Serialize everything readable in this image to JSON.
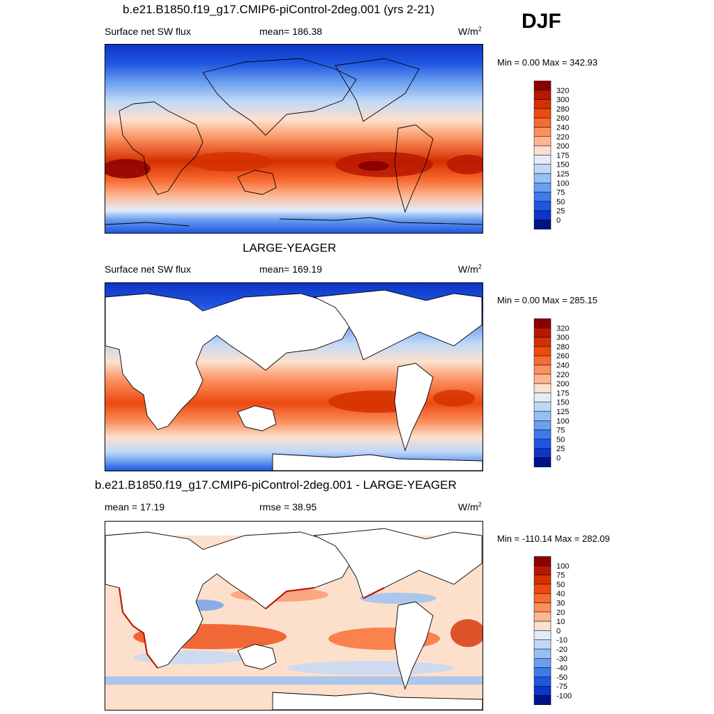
{
  "season": "DJF",
  "panels": [
    {
      "title": "b.e21.B1850.f19_g17.CMIP6-piControl-2deg.001 (yrs 2-21)",
      "left_label": "Surface net SW flux",
      "center_label": "mean= 186.38",
      "units": "W/m",
      "units_exp": "2",
      "minmax": "Min =   0.00 Max = 342.93",
      "colorbar": {
        "labels": [
          "320",
          "300",
          "280",
          "260",
          "240",
          "220",
          "200",
          "175",
          "150",
          "125",
          "100",
          "75",
          "50",
          "25",
          "0"
        ],
        "colors": [
          "#8b0000",
          "#b81800",
          "#d43000",
          "#ec4a10",
          "#f86a30",
          "#fb8f5e",
          "#fdb690",
          "#fde0cc",
          "#e2edfb",
          "#c0d8f8",
          "#98bff4",
          "#6b9ff0",
          "#3d7bec",
          "#1f56e0",
          "#0f35c8",
          "#00138a"
        ]
      }
    },
    {
      "title": "LARGE-YEAGER",
      "left_label": "Surface net SW flux",
      "center_label": "mean= 169.19",
      "units": "W/m",
      "units_exp": "2",
      "minmax": "Min =   0.00 Max = 285.15",
      "colorbar": {
        "labels": [
          "320",
          "300",
          "280",
          "260",
          "240",
          "220",
          "200",
          "175",
          "150",
          "125",
          "100",
          "75",
          "50",
          "25",
          "0"
        ],
        "colors": [
          "#8b0000",
          "#b81800",
          "#d43000",
          "#ec4a10",
          "#f86a30",
          "#fb8f5e",
          "#fdb690",
          "#fde0cc",
          "#e2edfb",
          "#c0d8f8",
          "#98bff4",
          "#6b9ff0",
          "#3d7bec",
          "#1f56e0",
          "#0f35c8",
          "#00138a"
        ]
      }
    },
    {
      "title": "b.e21.B1850.f19_g17.CMIP6-piControl-2deg.001 - LARGE-YEAGER",
      "left_label": "mean =  17.19",
      "center_label": "rmse =  38.95",
      "units": "W/m",
      "units_exp": "2",
      "minmax": "Min = -110.14 Max = 282.09",
      "colorbar": {
        "labels": [
          "100",
          "75",
          "50",
          "40",
          "30",
          "20",
          "10",
          "0",
          "-10",
          "-20",
          "-30",
          "-40",
          "-50",
          "-75",
          "-100"
        ],
        "colors": [
          "#8b0000",
          "#b81800",
          "#d43000",
          "#ec4a10",
          "#f86a30",
          "#fb8f5e",
          "#fdb690",
          "#fde0cc",
          "#e2edfb",
          "#c0d8f8",
          "#98bff4",
          "#6b9ff0",
          "#3d7bec",
          "#1f56e0",
          "#0f35c8",
          "#00138a"
        ]
      }
    }
  ]
}
